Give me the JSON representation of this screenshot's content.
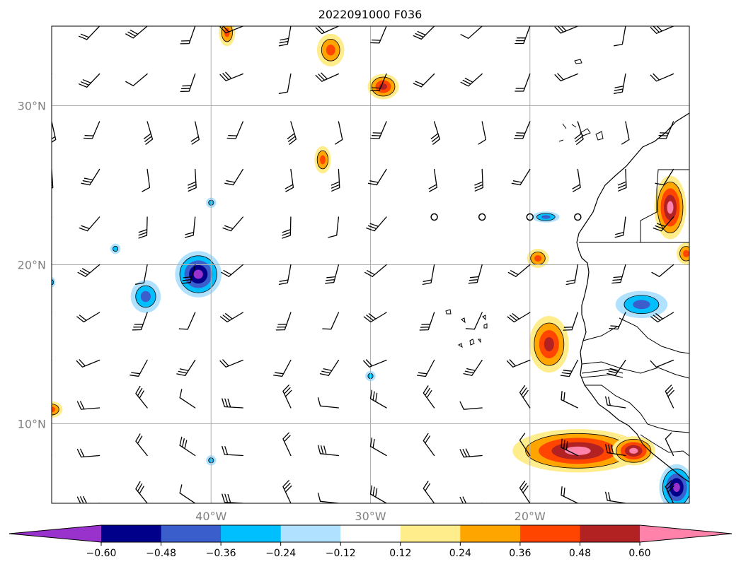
{
  "chart_data": {
    "type": "contour",
    "title": "2022091000 F036",
    "lon_range": [
      -50,
      -10
    ],
    "lat_range": [
      5,
      35
    ],
    "lon_ticks": [
      -40,
      -30,
      -20
    ],
    "lat_ticks": [
      10,
      20,
      30
    ],
    "lon_tick_labels": [
      "40°W",
      "30°W",
      "20°W"
    ],
    "lat_tick_labels": [
      "10°N",
      "20°N",
      "30°N"
    ],
    "grid": true,
    "colorbar": {
      "orientation": "horizontal",
      "extend": "both",
      "levels": [
        -0.6,
        -0.48,
        -0.36,
        -0.24,
        -0.12,
        0.12,
        0.24,
        0.36,
        0.48,
        0.6
      ],
      "level_labels": [
        "−0.60",
        "−0.48",
        "−0.36",
        "−0.24",
        "−0.12",
        "0.12",
        "0.24",
        "0.36",
        "0.48",
        "0.60"
      ],
      "colors": [
        "#9932cc",
        "#00008b",
        "#3a5fcd",
        "#00bfff",
        "#b0e2ff",
        "#ffffff",
        "#ffec8b",
        "#ffa500",
        "#ff4500",
        "#b22222",
        "#ff82ab"
      ]
    },
    "features": [
      {
        "kind": "positive",
        "lon": -39,
        "lat": 34.6,
        "rx": 0.6,
        "ry": 1.0,
        "peak": 0.36
      },
      {
        "kind": "positive",
        "lon": -32.5,
        "lat": 33.5,
        "rx": 1.0,
        "ry": 1.2,
        "peak": 0.36
      },
      {
        "kind": "positive",
        "lon": -29.2,
        "lat": 31.2,
        "rx": 1.1,
        "ry": 0.9,
        "peak": 0.48
      },
      {
        "kind": "positive",
        "lon": -33,
        "lat": 26.6,
        "rx": 0.6,
        "ry": 1.0,
        "peak": 0.36
      },
      {
        "kind": "positive",
        "lon": -19.5,
        "lat": 20.4,
        "rx": 0.8,
        "ry": 0.7,
        "peak": 0.36
      },
      {
        "kind": "positive",
        "lon": -18.8,
        "lat": 15.0,
        "rx": 1.4,
        "ry": 2.0,
        "peak": 0.48
      },
      {
        "kind": "positive",
        "lon": -17,
        "lat": 8.3,
        "rx": 4.5,
        "ry": 1.5,
        "peak": 0.6
      },
      {
        "kind": "positive",
        "lon": -13.5,
        "lat": 8.3,
        "rx": 1.5,
        "ry": 1.0,
        "peak": 0.6
      },
      {
        "kind": "positive",
        "lon": -11.2,
        "lat": 23.6,
        "rx": 1.1,
        "ry": 2.2,
        "peak": 0.6
      },
      {
        "kind": "positive",
        "lon": -10.2,
        "lat": 20.7,
        "rx": 0.7,
        "ry": 0.8,
        "peak": 0.36
      },
      {
        "kind": "positive",
        "lon": -50,
        "lat": 10.9,
        "rx": 0.8,
        "ry": 0.6,
        "peak": 0.36
      },
      {
        "kind": "negative",
        "lon": -40.8,
        "lat": 19.4,
        "rx": 1.6,
        "ry": 1.6,
        "peak": -0.6
      },
      {
        "kind": "negative",
        "lon": -44.1,
        "lat": 18.0,
        "rx": 1.1,
        "ry": 1.2,
        "peak": -0.36
      },
      {
        "kind": "negative",
        "lon": -13.0,
        "lat": 17.5,
        "rx": 1.9,
        "ry": 1.0,
        "peak": -0.36
      },
      {
        "kind": "negative",
        "lon": -19.0,
        "lat": 23.0,
        "rx": 1.0,
        "ry": 0.4,
        "peak": -0.36
      },
      {
        "kind": "negative",
        "lon": -10.8,
        "lat": 6.0,
        "rx": 1.2,
        "ry": 1.6,
        "peak": -0.6
      },
      {
        "kind": "negative",
        "lon": -46.0,
        "lat": 21.0,
        "rx": 0.4,
        "ry": 0.4,
        "peak": -0.24
      },
      {
        "kind": "negative",
        "lon": -40.0,
        "lat": 23.9,
        "rx": 0.4,
        "ry": 0.4,
        "peak": -0.24
      },
      {
        "kind": "negative",
        "lon": -30.0,
        "lat": 13.0,
        "rx": 0.4,
        "ry": 0.4,
        "peak": -0.24
      },
      {
        "kind": "negative",
        "lon": -40.0,
        "lat": 7.7,
        "rx": 0.4,
        "ry": 0.4,
        "peak": -0.24
      },
      {
        "kind": "negative",
        "lon": -50.0,
        "lat": 18.9,
        "rx": 0.3,
        "ry": 0.4,
        "peak": -0.24
      }
    ],
    "wind_barbs": {
      "lons": [
        -50,
        -47,
        -44,
        -41,
        -38,
        -35,
        -32,
        -29,
        -26,
        -23,
        -20,
        -17,
        -14,
        -11
      ],
      "lats": [
        35,
        32,
        29,
        26,
        23,
        20,
        17,
        14,
        11,
        8,
        5
      ],
      "calm_points": [
        [
          -26,
          23
        ],
        [
          -23,
          23
        ],
        [
          -20,
          23
        ],
        [
          -17,
          23
        ]
      ]
    }
  }
}
